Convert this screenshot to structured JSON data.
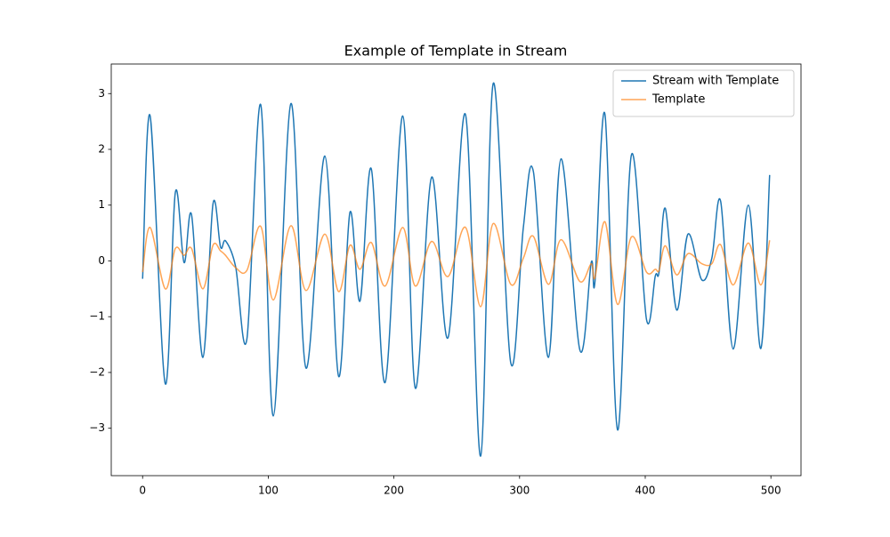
{
  "chart_data": {
    "type": "line",
    "title": "Example of Template in Stream",
    "x": [
      0,
      6,
      18,
      26,
      33,
      39,
      48,
      56,
      62,
      66,
      74,
      83,
      94,
      104,
      118,
      130,
      145,
      156,
      165,
      173,
      182,
      193,
      207,
      217,
      230,
      243,
      257,
      269,
      279,
      293,
      303,
      311,
      323,
      333,
      348,
      357,
      360,
      368,
      378,
      389,
      401,
      408,
      411,
      416,
      425,
      434,
      445,
      453,
      460,
      470,
      482,
      492,
      499
    ],
    "series": [
      {
        "name": "Stream with Template",
        "color": "#1f77b4",
        "values": [
          -0.32,
          2.6,
          -2.2,
          1.22,
          -0.03,
          0.82,
          -1.73,
          1.02,
          0.25,
          0.36,
          -0.1,
          -1.4,
          2.8,
          -2.78,
          2.82,
          -1.92,
          1.88,
          -2.07,
          0.87,
          -0.72,
          1.65,
          -2.18,
          2.6,
          -2.28,
          1.5,
          -1.38,
          2.62,
          -3.5,
          3.18,
          -1.83,
          0.6,
          1.6,
          -1.73,
          1.83,
          -1.6,
          -0.03,
          -0.37,
          2.62,
          -3.03,
          1.9,
          -1.05,
          -0.27,
          -0.2,
          0.94,
          -0.88,
          0.48,
          -0.34,
          0.05,
          1.07,
          -1.58,
          1.0,
          -1.57,
          1.54
        ]
      },
      {
        "name": "Template",
        "color": "#ff7f0e",
        "values": [
          -0.2,
          0.6,
          -0.5,
          0.22,
          0.1,
          0.22,
          -0.5,
          0.28,
          0.18,
          0.1,
          -0.12,
          -0.17,
          0.62,
          -0.7,
          0.63,
          -0.53,
          0.48,
          -0.55,
          0.28,
          -0.15,
          0.33,
          -0.45,
          0.6,
          -0.45,
          0.35,
          -0.28,
          0.6,
          -0.82,
          0.67,
          -0.42,
          0.05,
          0.44,
          -0.42,
          0.38,
          -0.37,
          -0.05,
          -0.3,
          0.7,
          -0.78,
          0.43,
          -0.2,
          -0.15,
          -0.17,
          0.27,
          -0.25,
          0.13,
          -0.05,
          -0.05,
          0.29,
          -0.43,
          0.32,
          -0.43,
          0.37
        ]
      }
    ],
    "xlim": [
      -24.95,
      523.95
    ],
    "xticks": [
      0,
      100,
      200,
      300,
      400,
      500
    ],
    "ylim": [
      -3.85,
      3.53
    ],
    "yticks": [
      -3,
      -2,
      -1,
      0,
      1,
      2,
      3
    ],
    "grid": false,
    "legend": "upper right"
  }
}
